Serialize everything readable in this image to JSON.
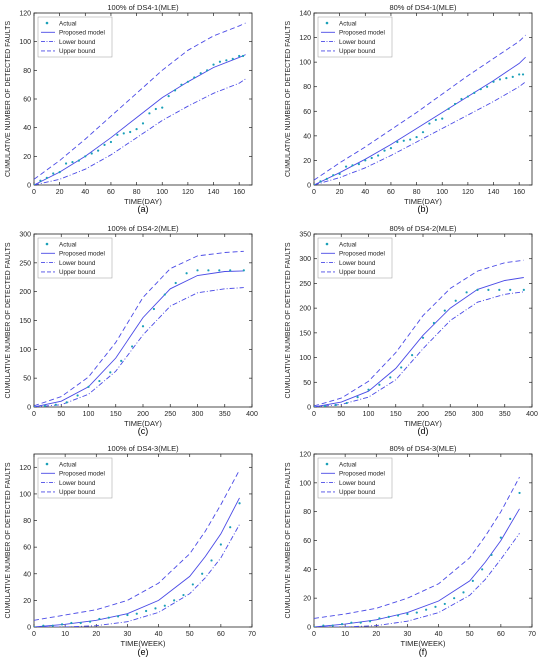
{
  "legend_labels": [
    "Actual",
    "Proposed model",
    "Lower bound",
    "Upper bound"
  ],
  "colors": {
    "actual": "#1aa0b8",
    "model": "#4a4ae6",
    "axis": "#222222"
  },
  "chart_data": [
    {
      "panel_label": "(a)",
      "type": "line",
      "title": "100% of DS4-1(MLE)",
      "xlabel": "TIME(DAY)",
      "ylabel": "CUMULATIVE NUMBER OF DETECTED FAULTS",
      "xlim": [
        0,
        170
      ],
      "ylim": [
        0,
        120
      ],
      "xticks": [
        0,
        20,
        40,
        60,
        80,
        100,
        120,
        140,
        160
      ],
      "yticks": [
        0,
        20,
        40,
        60,
        80,
        100,
        120
      ],
      "legend": "top-left",
      "grid": false,
      "actual": {
        "x": [
          0,
          5,
          10,
          15,
          20,
          25,
          30,
          35,
          40,
          45,
          50,
          55,
          60,
          65,
          70,
          75,
          80,
          85,
          90,
          95,
          100,
          105,
          110,
          115,
          120,
          125,
          130,
          135,
          140,
          145,
          150,
          155,
          160,
          163
        ],
        "y": [
          0,
          3,
          5,
          8,
          9,
          15,
          16,
          17,
          20,
          22,
          24,
          28,
          30,
          35,
          36,
          37,
          39,
          43,
          50,
          53,
          54,
          62,
          66,
          70,
          72,
          75,
          78,
          80,
          84,
          86,
          87,
          88,
          90,
          90
        ]
      },
      "model": {
        "x": [
          0,
          20,
          40,
          60,
          80,
          100,
          120,
          140,
          160,
          165
        ],
        "y": [
          0,
          9,
          20,
          33,
          47,
          61,
          72,
          82,
          89,
          91
        ]
      },
      "lower": {
        "x": [
          0,
          20,
          40,
          60,
          80,
          100,
          120,
          140,
          160,
          165
        ],
        "y": [
          0,
          4,
          11,
          21,
          33,
          45,
          55,
          64,
          71,
          74
        ]
      },
      "upper": {
        "x": [
          0,
          20,
          40,
          60,
          80,
          100,
          120,
          140,
          160,
          165
        ],
        "y": [
          4,
          17,
          32,
          48,
          64,
          80,
          94,
          104,
          111,
          113
        ]
      }
    },
    {
      "panel_label": "(b)",
      "type": "line",
      "title": "80% of DS4-1(MLE)",
      "xlabel": "TIME(DAY)",
      "ylabel": "CUMULATIVE NUMBER OF DETECTED FAULTS",
      "xlim": [
        0,
        170
      ],
      "ylim": [
        0,
        140
      ],
      "xticks": [
        0,
        20,
        40,
        60,
        80,
        100,
        120,
        140,
        160
      ],
      "yticks": [
        0,
        20,
        40,
        60,
        80,
        100,
        120,
        140
      ],
      "legend": "top-left",
      "grid": false,
      "actual": {
        "x": [
          0,
          5,
          10,
          15,
          20,
          25,
          30,
          35,
          40,
          45,
          50,
          55,
          60,
          65,
          70,
          75,
          80,
          85,
          90,
          95,
          100,
          105,
          110,
          115,
          120,
          125,
          130,
          135,
          140,
          145,
          150,
          155,
          160,
          163
        ],
        "y": [
          0,
          3,
          5,
          8,
          9,
          15,
          16,
          17,
          20,
          22,
          24,
          28,
          30,
          35,
          36,
          37,
          39,
          43,
          50,
          53,
          54,
          62,
          66,
          70,
          72,
          75,
          78,
          80,
          84,
          86,
          87,
          88,
          90,
          90
        ]
      },
      "model": {
        "x": [
          0,
          20,
          40,
          60,
          80,
          100,
          120,
          140,
          160,
          165
        ],
        "y": [
          0,
          10,
          21,
          33,
          46,
          59,
          72,
          85,
          99,
          104
        ]
      },
      "lower": {
        "x": [
          0,
          20,
          40,
          60,
          80,
          100,
          120,
          140,
          160,
          165
        ],
        "y": [
          0,
          6,
          14,
          24,
          35,
          46,
          57,
          68,
          80,
          84
        ]
      },
      "upper": {
        "x": [
          0,
          20,
          40,
          60,
          80,
          100,
          120,
          140,
          160,
          165
        ],
        "y": [
          4,
          18,
          31,
          45,
          59,
          74,
          89,
          103,
          117,
          122
        ]
      }
    },
    {
      "panel_label": "(c)",
      "type": "line",
      "title": "100% of DS4-2(MLE)",
      "xlabel": "TIME(DAY)",
      "ylabel": "CUMULATIVE NUMBER OF DETECTED FAULTS",
      "xlim": [
        0,
        400
      ],
      "ylim": [
        0,
        300
      ],
      "xticks": [
        0,
        50,
        100,
        150,
        200,
        250,
        300,
        350,
        400
      ],
      "yticks": [
        0,
        50,
        100,
        150,
        200,
        250,
        300
      ],
      "legend": "top-left",
      "grid": false,
      "actual": {
        "x": [
          0,
          20,
          40,
          60,
          80,
          100,
          120,
          140,
          160,
          180,
          200,
          220,
          240,
          260,
          280,
          300,
          320,
          340,
          360,
          385
        ],
        "y": [
          0,
          2,
          4,
          8,
          20,
          35,
          45,
          60,
          80,
          105,
          140,
          170,
          195,
          215,
          232,
          237,
          237,
          237,
          237,
          237
        ]
      },
      "model": {
        "x": [
          0,
          50,
          100,
          150,
          200,
          250,
          300,
          350,
          385
        ],
        "y": [
          0,
          10,
          35,
          85,
          155,
          205,
          228,
          235,
          236
        ]
      },
      "lower": {
        "x": [
          0,
          50,
          100,
          150,
          200,
          250,
          300,
          350,
          385
        ],
        "y": [
          0,
          4,
          22,
          62,
          125,
          175,
          198,
          205,
          207
        ]
      },
      "upper": {
        "x": [
          0,
          50,
          100,
          150,
          200,
          250,
          300,
          350,
          385
        ],
        "y": [
          2,
          18,
          52,
          112,
          190,
          240,
          262,
          268,
          270
        ]
      }
    },
    {
      "panel_label": "(d)",
      "type": "line",
      "title": "80% of DS4-2(MLE)",
      "xlabel": "TIME(DAY)",
      "ylabel": "CUMULATIVE NUMBER OF DETECTED FAULTS",
      "xlim": [
        0,
        400
      ],
      "ylim": [
        0,
        350
      ],
      "xticks": [
        0,
        50,
        100,
        150,
        200,
        250,
        300,
        350,
        400
      ],
      "yticks": [
        0,
        50,
        100,
        150,
        200,
        250,
        300,
        350
      ],
      "legend": "top-left",
      "grid": false,
      "actual": {
        "x": [
          0,
          20,
          40,
          60,
          80,
          100,
          120,
          140,
          160,
          180,
          200,
          220,
          240,
          260,
          280,
          300,
          320,
          340,
          360,
          385
        ],
        "y": [
          0,
          2,
          4,
          8,
          20,
          35,
          45,
          60,
          80,
          105,
          140,
          170,
          195,
          215,
          232,
          237,
          237,
          237,
          237,
          237
        ]
      },
      "model": {
        "x": [
          0,
          50,
          100,
          150,
          200,
          250,
          300,
          350,
          385
        ],
        "y": [
          0,
          10,
          32,
          78,
          145,
          200,
          238,
          256,
          262
        ]
      },
      "lower": {
        "x": [
          0,
          50,
          100,
          150,
          200,
          250,
          300,
          350,
          385
        ],
        "y": [
          0,
          5,
          20,
          55,
          118,
          175,
          212,
          228,
          233
        ]
      },
      "upper": {
        "x": [
          0,
          50,
          100,
          150,
          200,
          250,
          300,
          350,
          385
        ],
        "y": [
          2,
          18,
          52,
          110,
          185,
          240,
          275,
          292,
          297
        ]
      }
    },
    {
      "panel_label": "(e)",
      "type": "line",
      "title": "100% of DS4-3(MLE)",
      "xlabel": "TIME(WEEK)",
      "ylabel": "CUMULATIVE NUMBER OF DETECTED FAULTS",
      "xlim": [
        0,
        70
      ],
      "ylim": [
        0,
        130
      ],
      "xticks": [
        0,
        10,
        20,
        30,
        40,
        50,
        60,
        70
      ],
      "yticks": [
        0,
        20,
        40,
        60,
        80,
        100,
        120
      ],
      "legend": "top-left",
      "grid": false,
      "actual": {
        "x": [
          0,
          3,
          6,
          9,
          12,
          15,
          18,
          21,
          24,
          27,
          30,
          33,
          36,
          39,
          42,
          45,
          48,
          51,
          54,
          57,
          60,
          63,
          66
        ],
        "y": [
          0,
          1,
          1,
          2,
          3,
          3,
          4,
          6,
          7,
          8,
          9,
          10,
          12,
          14,
          16,
          20,
          24,
          32,
          40,
          50,
          62,
          75,
          93
        ]
      },
      "model": {
        "x": [
          0,
          10,
          20,
          30,
          40,
          50,
          55,
          60,
          66
        ],
        "y": [
          0,
          2,
          5,
          10,
          20,
          38,
          53,
          70,
          97
        ]
      },
      "lower": {
        "x": [
          0,
          10,
          20,
          30,
          40,
          50,
          55,
          60,
          66
        ],
        "y": [
          0,
          0,
          1,
          4,
          11,
          25,
          37,
          52,
          77
        ]
      },
      "upper": {
        "x": [
          0,
          10,
          20,
          30,
          40,
          50,
          55,
          60,
          66
        ],
        "y": [
          5,
          9,
          13,
          20,
          33,
          55,
          72,
          92,
          118
        ]
      }
    },
    {
      "panel_label": "(f)",
      "type": "line",
      "title": "80% of DS4-3(MLE)",
      "xlabel": "TIME(WEEK)",
      "ylabel": "CUMULATIVE NUMBER OF DETECTED FAULTS",
      "xlim": [
        0,
        70
      ],
      "ylim": [
        0,
        120
      ],
      "xticks": [
        0,
        10,
        20,
        30,
        40,
        50,
        60,
        70
      ],
      "yticks": [
        0,
        20,
        40,
        60,
        80,
        100,
        120
      ],
      "legend": "top-left",
      "grid": false,
      "actual": {
        "x": [
          0,
          3,
          6,
          9,
          12,
          15,
          18,
          21,
          24,
          27,
          30,
          33,
          36,
          39,
          42,
          45,
          48,
          51,
          54,
          57,
          60,
          63,
          66
        ],
        "y": [
          0,
          1,
          1,
          2,
          3,
          3,
          4,
          6,
          7,
          8,
          9,
          10,
          12,
          14,
          16,
          20,
          24,
          32,
          40,
          50,
          62,
          75,
          93
        ]
      },
      "model": {
        "x": [
          0,
          10,
          20,
          30,
          40,
          50,
          55,
          60,
          66
        ],
        "y": [
          0,
          2,
          5,
          10,
          18,
          32,
          45,
          60,
          82
        ]
      },
      "lower": {
        "x": [
          0,
          10,
          20,
          30,
          40,
          50,
          55,
          60,
          66
        ],
        "y": [
          0,
          0,
          1,
          4,
          10,
          22,
          33,
          47,
          65
        ]
      },
      "upper": {
        "x": [
          0,
          10,
          20,
          30,
          40,
          50,
          55,
          60,
          66
        ],
        "y": [
          6,
          9,
          13,
          20,
          30,
          48,
          63,
          80,
          104
        ]
      }
    }
  ]
}
